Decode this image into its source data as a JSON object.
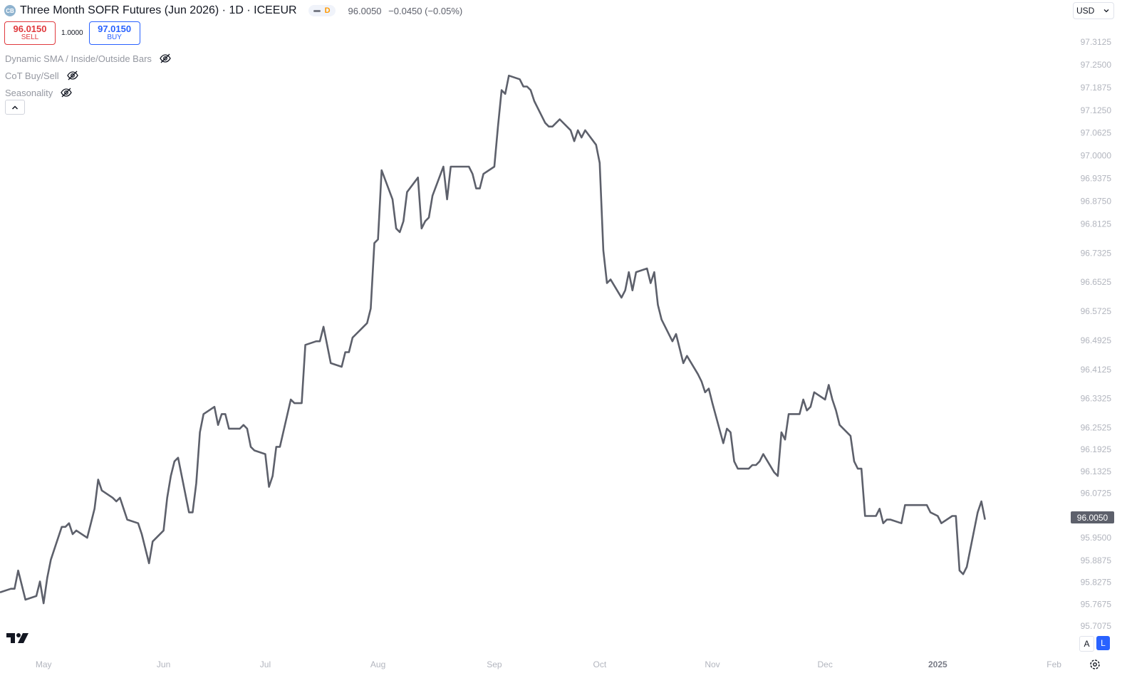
{
  "header": {
    "title": "Three Month SOFR Futures (Jun 2026) · 1D · ICEEUR",
    "badge": "D",
    "last": "96.0050",
    "change": "−0.0450 (−0.05%)"
  },
  "trade": {
    "sell_price": "96.0150",
    "sell_label": "SELL",
    "spread": "1.0000",
    "buy_price": "97.0150",
    "buy_label": "BUY"
  },
  "indicators": [
    {
      "label": "Dynamic SMA / Inside/Outside Bars",
      "icon": "eye-off-icon"
    },
    {
      "label": "CoT Buy/Sell",
      "icon": "eye-off-icon"
    },
    {
      "label": "Seasonality",
      "icon": "eye-off-icon"
    }
  ],
  "currency": "USD",
  "scale_buttons": {
    "auto": "A",
    "log": "L"
  },
  "colors": {
    "line": "#5d606b",
    "axis_text": "#b2b5be",
    "price_label_bg": "#5d606b",
    "log_active": "#2962ff"
  },
  "chart_data": {
    "type": "line",
    "scale": "log",
    "title": "",
    "xlabel": "",
    "ylabel": "",
    "grid": false,
    "last_price_label": "96.0050",
    "y_ticks": [
      "97.3125",
      "97.2500",
      "97.1875",
      "97.1250",
      "97.0625",
      "97.0000",
      "96.9375",
      "96.8750",
      "96.8125",
      "96.7325",
      "96.6525",
      "96.5725",
      "96.4925",
      "96.4125",
      "96.3325",
      "96.2525",
      "96.1925",
      "96.1325",
      "96.0725",
      "95.9500",
      "95.8875",
      "95.8275",
      "95.7675",
      "95.7075"
    ],
    "x_ticks": [
      {
        "label": "May",
        "date": "2024-05-01",
        "bold": false
      },
      {
        "label": "Jun",
        "date": "2024-06-03",
        "bold": false
      },
      {
        "label": "Jul",
        "date": "2024-07-01",
        "bold": false
      },
      {
        "label": "Aug",
        "date": "2024-08-01",
        "bold": false
      },
      {
        "label": "Sep",
        "date": "2024-09-02",
        "bold": false
      },
      {
        "label": "Oct",
        "date": "2024-10-01",
        "bold": false
      },
      {
        "label": "Nov",
        "date": "2024-11-01",
        "bold": false
      },
      {
        "label": "Dec",
        "date": "2024-12-02",
        "bold": false
      },
      {
        "label": "2025",
        "date": "2025-01-02",
        "bold": true
      },
      {
        "label": "Feb",
        "date": "2025-02-03",
        "bold": false
      }
    ],
    "x_range": [
      "2024-04-19",
      "2025-02-07"
    ],
    "ylim": [
      95.69,
      97.33
    ],
    "series": [
      {
        "x": [
          "2024-04-19",
          "2024-04-22",
          "2024-04-23",
          "2024-04-24",
          "2024-04-25",
          "2024-04-26",
          "2024-04-29",
          "2024-04-30",
          "2024-05-01",
          "2024-05-02",
          "2024-05-03",
          "2024-05-06",
          "2024-05-07",
          "2024-05-08",
          "2024-05-09",
          "2024-05-10",
          "2024-05-13",
          "2024-05-14",
          "2024-05-15",
          "2024-05-16",
          "2024-05-17",
          "2024-05-20",
          "2024-05-21",
          "2024-05-22",
          "2024-05-23",
          "2024-05-24",
          "2024-05-27",
          "2024-05-28",
          "2024-05-29",
          "2024-05-30",
          "2024-05-31",
          "2024-06-03",
          "2024-06-04",
          "2024-06-05",
          "2024-06-06",
          "2024-06-07",
          "2024-06-10",
          "2024-06-11",
          "2024-06-12",
          "2024-06-13",
          "2024-06-14",
          "2024-06-17",
          "2024-06-18",
          "2024-06-19",
          "2024-06-20",
          "2024-06-21",
          "2024-06-24",
          "2024-06-25",
          "2024-06-26",
          "2024-06-27",
          "2024-06-28",
          "2024-07-01",
          "2024-07-02",
          "2024-07-03",
          "2024-07-04",
          "2024-07-05",
          "2024-07-08",
          "2024-07-09",
          "2024-07-10",
          "2024-07-11",
          "2024-07-12",
          "2024-07-15",
          "2024-07-16",
          "2024-07-17",
          "2024-07-18",
          "2024-07-19",
          "2024-07-22",
          "2024-07-23",
          "2024-07-24",
          "2024-07-25",
          "2024-07-26",
          "2024-07-29",
          "2024-07-30",
          "2024-07-31",
          "2024-08-01",
          "2024-08-02",
          "2024-08-05",
          "2024-08-06",
          "2024-08-07",
          "2024-08-08",
          "2024-08-09",
          "2024-08-12",
          "2024-08-13",
          "2024-08-14",
          "2024-08-15",
          "2024-08-16",
          "2024-08-19",
          "2024-08-20",
          "2024-08-21",
          "2024-08-22",
          "2024-08-23",
          "2024-08-26",
          "2024-08-27",
          "2024-08-28",
          "2024-08-29",
          "2024-08-30",
          "2024-09-02",
          "2024-09-03",
          "2024-09-04",
          "2024-09-05",
          "2024-09-06",
          "2024-09-09",
          "2024-09-10",
          "2024-09-11",
          "2024-09-12",
          "2024-09-13",
          "2024-09-16",
          "2024-09-17",
          "2024-09-18",
          "2024-09-19",
          "2024-09-20",
          "2024-09-23",
          "2024-09-24",
          "2024-09-25",
          "2024-09-26",
          "2024-09-27",
          "2024-09-30",
          "2024-10-01",
          "2024-10-02",
          "2024-10-03",
          "2024-10-04",
          "2024-10-07",
          "2024-10-08",
          "2024-10-09",
          "2024-10-10",
          "2024-10-11",
          "2024-10-14",
          "2024-10-15",
          "2024-10-16",
          "2024-10-17",
          "2024-10-18",
          "2024-10-21",
          "2024-10-22",
          "2024-10-23",
          "2024-10-24",
          "2024-10-25",
          "2024-10-28",
          "2024-10-29",
          "2024-10-30",
          "2024-10-31",
          "2024-11-01",
          "2024-11-04",
          "2024-11-05",
          "2024-11-06",
          "2024-11-07",
          "2024-11-08",
          "2024-11-11",
          "2024-11-12",
          "2024-11-13",
          "2024-11-14",
          "2024-11-15",
          "2024-11-18",
          "2024-11-19",
          "2024-11-20",
          "2024-11-21",
          "2024-11-22",
          "2024-11-25",
          "2024-11-26",
          "2024-11-27",
          "2024-11-28",
          "2024-11-29",
          "2024-12-02",
          "2024-12-03",
          "2024-12-04",
          "2024-12-05",
          "2024-12-06",
          "2024-12-09",
          "2024-12-10",
          "2024-12-11",
          "2024-12-12",
          "2024-12-13",
          "2024-12-16",
          "2024-12-17",
          "2024-12-18",
          "2024-12-19",
          "2024-12-20",
          "2024-12-23",
          "2024-12-24",
          "2024-12-27",
          "2024-12-30",
          "2024-12-31",
          "2025-01-02",
          "2025-01-03",
          "2025-01-06",
          "2025-01-07",
          "2025-01-08",
          "2025-01-09",
          "2025-01-10",
          "2025-01-13",
          "2025-01-14",
          "2025-01-15"
        ],
        "values": [
          95.8,
          95.81,
          95.81,
          95.86,
          95.82,
          95.78,
          95.79,
          95.83,
          95.77,
          95.84,
          95.89,
          95.98,
          95.98,
          95.99,
          95.96,
          95.97,
          95.95,
          95.99,
          96.03,
          96.11,
          96.08,
          96.06,
          96.05,
          96.06,
          96.03,
          96.0,
          95.99,
          95.96,
          95.92,
          95.88,
          95.94,
          95.97,
          96.06,
          96.12,
          96.16,
          96.17,
          96.02,
          96.02,
          96.1,
          96.24,
          96.29,
          96.31,
          96.26,
          96.29,
          96.29,
          96.25,
          96.25,
          96.26,
          96.25,
          96.2,
          96.19,
          96.18,
          96.09,
          96.12,
          96.2,
          96.2,
          96.33,
          96.32,
          96.32,
          96.32,
          96.48,
          96.49,
          96.49,
          96.53,
          96.48,
          96.43,
          96.42,
          96.46,
          96.46,
          96.5,
          96.51,
          96.54,
          96.58,
          96.76,
          96.77,
          96.96,
          96.88,
          96.8,
          96.79,
          96.82,
          96.9,
          96.94,
          96.8,
          96.82,
          96.83,
          96.89,
          96.97,
          96.88,
          96.97,
          96.97,
          96.97,
          96.97,
          96.95,
          96.91,
          96.91,
          96.95,
          96.97,
          97.08,
          97.18,
          97.17,
          97.22,
          97.21,
          97.19,
          97.19,
          97.18,
          97.15,
          97.09,
          97.08,
          97.08,
          97.09,
          97.1,
          97.07,
          97.04,
          97.07,
          97.05,
          97.07,
          97.03,
          96.98,
          96.74,
          96.65,
          96.66,
          96.61,
          96.63,
          96.68,
          96.63,
          96.68,
          96.69,
          96.65,
          96.68,
          96.59,
          96.55,
          96.49,
          96.51,
          96.47,
          96.43,
          96.45,
          96.4,
          96.38,
          96.35,
          96.36,
          96.32,
          96.21,
          96.25,
          96.24,
          96.16,
          96.14,
          96.14,
          96.15,
          96.15,
          96.16,
          96.18,
          96.13,
          96.12,
          96.24,
          96.22,
          96.29,
          96.29,
          96.33,
          96.3,
          96.31,
          96.35,
          96.33,
          96.37,
          96.33,
          96.3,
          96.26,
          96.23,
          96.16,
          96.14,
          96.14,
          96.01,
          96.01,
          96.03,
          95.99,
          96.0,
          96.0,
          95.99,
          96.04,
          96.04,
          96.04,
          96.02,
          96.01,
          95.99,
          96.01,
          96.01,
          95.86,
          95.85,
          95.87,
          96.02,
          96.05,
          96.0
        ]
      }
    ]
  }
}
